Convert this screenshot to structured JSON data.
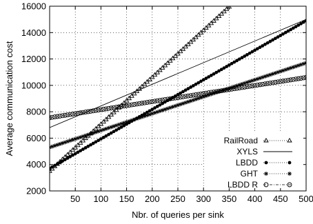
{
  "chart_data": {
    "type": "line",
    "title": "",
    "xlabel": "Nbr. of queries per sink",
    "ylabel": "Average communication cost",
    "xlim": [
      0,
      500
    ],
    "ylim": [
      2000,
      16000
    ],
    "x_ticks": [
      50,
      100,
      150,
      200,
      250,
      300,
      350,
      400,
      450,
      500
    ],
    "y_ticks": [
      2000,
      4000,
      6000,
      8000,
      10000,
      12000,
      14000,
      16000
    ],
    "grid": true,
    "legend_position": "bottom-right",
    "series": [
      {
        "name": "RailRoad",
        "marker": "triangle",
        "dash": "dotted",
        "x": [
          0,
          350
        ],
        "y": [
          3500,
          15950
        ]
      },
      {
        "name": "XYLS",
        "marker": "none",
        "dash": "solid",
        "x": [
          0,
          500
        ],
        "y": [
          6800,
          15000
        ]
      },
      {
        "name": "LBDD",
        "marker": "filled-circle",
        "dash": "dotted",
        "x": [
          0,
          500
        ],
        "y": [
          3700,
          14900
        ]
      },
      {
        "name": "GHT",
        "marker": "asterisk",
        "dash": "dotted",
        "x": [
          0,
          500
        ],
        "y": [
          5300,
          11700
        ]
      },
      {
        "name": "LBDD R",
        "marker": "open-circle",
        "dash": "dash-dot",
        "x": [
          0,
          500
        ],
        "y": [
          7550,
          10600
        ]
      }
    ]
  }
}
